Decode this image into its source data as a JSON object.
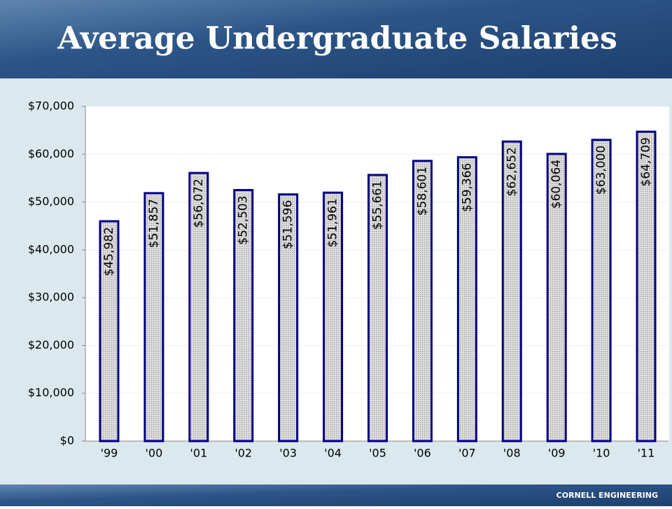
{
  "chart_data": {
    "type": "bar",
    "title": "Average Undergraduate Salaries",
    "categories": [
      "'99",
      "'00",
      "'01",
      "'02",
      "'03",
      "'04",
      "'05",
      "'06",
      "'07",
      "'08",
      "'09",
      "'10",
      "'11"
    ],
    "values": [
      45982,
      51857,
      56072,
      52503,
      51596,
      51961,
      55661,
      58601,
      59366,
      62652,
      60064,
      63000,
      64709
    ],
    "value_labels": [
      "$45,982",
      "$51,857",
      "$56,072",
      "$52,503",
      "$51,596",
      "$51,961",
      "$55,661",
      "$58,601",
      "$59,366",
      "$62,652",
      "$60,064",
      "$63,000",
      "$64,709"
    ],
    "color": "#c8c8c8",
    "ylim": [
      0,
      70000
    ],
    "yticks": [
      {
        "value": 0,
        "label": "$0"
      },
      {
        "value": 10000,
        "label": "$10,000"
      },
      {
        "value": 20000,
        "label": "$20,000"
      },
      {
        "value": 30000,
        "label": "$30,000"
      },
      {
        "value": 40000,
        "label": "$40,000"
      },
      {
        "value": 50000,
        "label": "$50,000"
      },
      {
        "value": 60000,
        "label": "$60,000"
      },
      {
        "value": 70000,
        "label": "$70,000"
      }
    ],
    "grid": true
  },
  "footer": "CORNELL ENGINEERING"
}
